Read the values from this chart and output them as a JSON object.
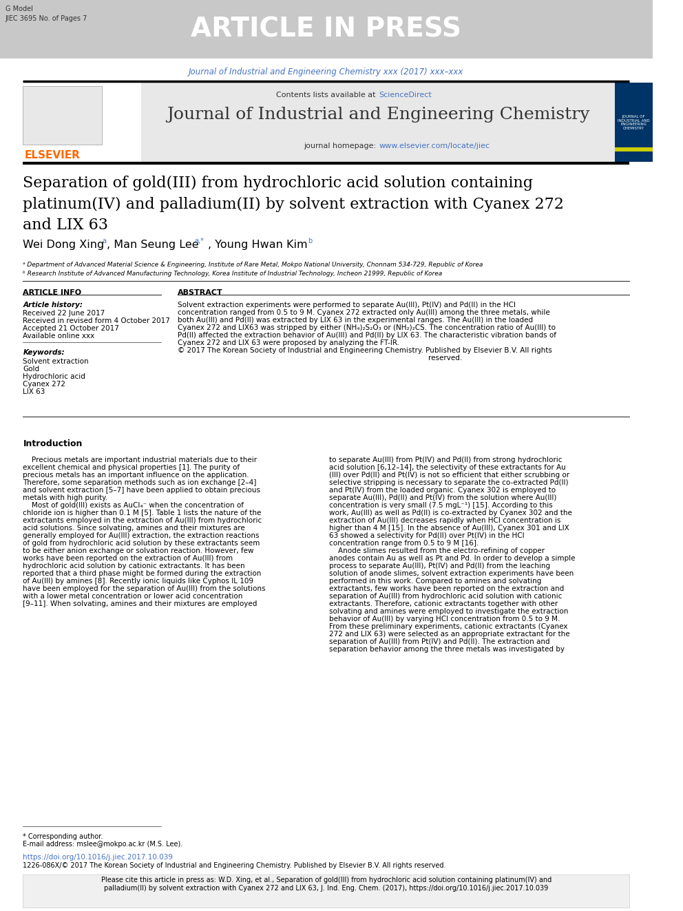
{
  "page_bg": "#ffffff",
  "header_bg": "#c8c8c8",
  "header_text": "ARTICLE IN PRESS",
  "header_text_color": "#ffffff",
  "header_left_line1": "G Model",
  "header_left_line2": "JIEC 3695 No. of Pages 7",
  "header_left_color": "#333333",
  "journal_ref_line": "Journal of Industrial and Engineering Chemistry xxx (2017) xxx–xxx",
  "journal_ref_color": "#4472c4",
  "separator_color": "#000000",
  "elsevier_color": "#ff6600",
  "contents_text": "Contents lists available at ",
  "sciencedirect_text": "ScienceDirect",
  "sciencedirect_color": "#4472c4",
  "journal_name": "Journal of Industrial and Engineering Chemistry",
  "journal_homepage_prefix": "journal homepage: ",
  "journal_homepage_url": "www.elsevier.com/locate/jiec",
  "journal_homepage_color": "#4472c4",
  "header_box_bg": "#e8e8e8",
  "cover_box_bg": "#003366",
  "article_title": "Separation of gold(III) from hydrochloric acid solution containing\nplatinum(IV) and palladium(II) by solvent extraction with Cyanex 272\nand LIX 63",
  "article_title_fontsize": 16,
  "affil1": "ᵃ Department of Advanced Material Science & Engineering, Institute of Rare Metal, Mokpo National University, Chonnam 534-729, Republic of Korea",
  "affil2": "ᵇ Research Institute of Advanced Manufacturing Technology, Korea Institute of Industrial Technology, Incheon 21999, Republic of Korea",
  "article_info_header": "ARTICLE INFO",
  "abstract_header": "ABSTRACT",
  "article_history_header": "Article history:",
  "received": "Received 22 June 2017",
  "revised": "Received in revised form 4 October 2017",
  "accepted": "Accepted 21 October 2017",
  "available": "Available online xxx",
  "keywords_header": "Keywords:",
  "keywords": [
    "Solvent extraction",
    "Gold",
    "Hydrochloric acid",
    "Cyanex 272",
    "LIX 63"
  ],
  "abstract_lines": [
    "Solvent extraction experiments were performed to separate Au(III), Pt(IV) and Pd(II) in the HCl",
    "concentration ranged from 0.5 to 9 M. Cyanex 272 extracted only Au(III) among the three metals, while",
    "both Au(III) and Pd(II) was extracted by LIX 63 in the experimental ranges. The Au(III) in the loaded",
    "Cyanex 272 and LIX63 was stripped by either (NH₄)₂S₂O₃ or (NH₂)₂CS. The concentration ratio of Au(III) to",
    "Pd(II) affected the extraction behavior of Au(III) and Pd(II) by LIX 63. The characteristic vibration bands of",
    "Cyanex 272 and LIX 63 were proposed by analyzing the FT-IR.",
    "© 2017 The Korean Society of Industrial and Engineering Chemistry. Published by Elsevier B.V. All rights",
    "                                                                                                                reserved."
  ],
  "intro_header": "Introduction",
  "intro_col1": [
    "    Precious metals are important industrial materials due to their",
    "excellent chemical and physical properties [1]. The purity of",
    "precious metals has an important influence on the application.",
    "Therefore, some separation methods such as ion exchange [2–4]",
    "and solvent extraction [5–7] have been applied to obtain precious",
    "metals with high purity.",
    "    Most of gold(III) exists as AuCl₄⁻ when the concentration of",
    "chloride ion is higher than 0.1 M [5]. Table 1 lists the nature of the",
    "extractants employed in the extraction of Au(III) from hydrochloric",
    "acid solutions. Since solvating, amines and their mixtures are",
    "generally employed for Au(III) extraction, the extraction reactions",
    "of gold from hydrochloric acid solution by these extractants seem",
    "to be either anion exchange or solvation reaction. However, few",
    "works have been reported on the extraction of Au(III) from",
    "hydrochloric acid solution by cationic extractants. It has been",
    "reported that a third phase might be formed during the extraction",
    "of Au(III) by amines [8]. Recently ionic liquids like Cyphos IL 109",
    "have been employed for the separation of Au(III) from the solutions",
    "with a lower metal concentration or lower acid concentration",
    "[9–11]. When solvating, amines and their mixtures are employed"
  ],
  "intro_col2": [
    "to separate Au(III) from Pt(IV) and Pd(II) from strong hydrochloric",
    "acid solution [6,12–14], the selectivity of these extractants for Au",
    "(III) over Pd(II) and Pt(IV) is not so efficient that either scrubbing or",
    "selective stripping is necessary to separate the co-extracted Pd(II)",
    "and Pt(IV) from the loaded organic. Cyanex 302 is employed to",
    "separate Au(III), Pd(II) and Pt(IV) from the solution where Au(III)",
    "concentration is very small (7.5 mgL⁻¹) [15]. According to this",
    "work, Au(III) as well as Pd(II) is co-extracted by Cyanex 302 and the",
    "extraction of Au(III) decreases rapidly when HCl concentration is",
    "higher than 4 M [15]. In the absence of Au(III), Cyanex 301 and LIX",
    "63 showed a selectivity for Pd(II) over Pt(IV) in the HCl",
    "concentration range from 0.5 to 9 M [16].",
    "    Anode slimes resulted from the electro-refining of copper",
    "anodes contain Au as well as Pt and Pd. In order to develop a simple",
    "process to separate Au(III), Pt(IV) and Pd(II) from the leaching",
    "solution of anode slimes, solvent extraction experiments have been",
    "performed in this work. Compared to amines and solvating",
    "extractants, few works have been reported on the extraction and",
    "separation of Au(III) from hydrochloric acid solution with cationic",
    "extractants. Therefore, cationic extractants together with other",
    "solvating and amines were employed to investigate the extraction",
    "behavior of Au(III) by varying HCl concentration from 0.5 to 9 M.",
    "From these preliminary experiments, cationic extractants (Cyanex",
    "272 and LIX 63) were selected as an appropriate extractant for the",
    "separation of Au(III) from Pt(IV) and Pd(II). The extraction and",
    "separation behavior among the three metals was investigated by"
  ],
  "corr_text": "* Corresponding author.",
  "email_text": "E-mail address: mslee@mokpo.ac.kr (M.S. Lee).",
  "doi_text": "https://doi.org/10.1016/j.jiec.2017.10.039",
  "doi_color": "#4472c4",
  "issn_text": "1226-086X/© 2017 The Korean Society of Industrial and Engineering Chemistry. Published by Elsevier B.V. All rights reserved.",
  "cite_box_text": "Please cite this article in press as: W.D. Xing, et al., Separation of gold(III) from hydrochloric acid solution containing platinum(IV) and\npalladium(II) by solvent extraction with Cyanex 272 and LIX 63, J. Ind. Eng. Chem. (2017), https://doi.org/10.1016/j.jiec.2017.10.039",
  "cite_box_bg": "#f0f0f0"
}
